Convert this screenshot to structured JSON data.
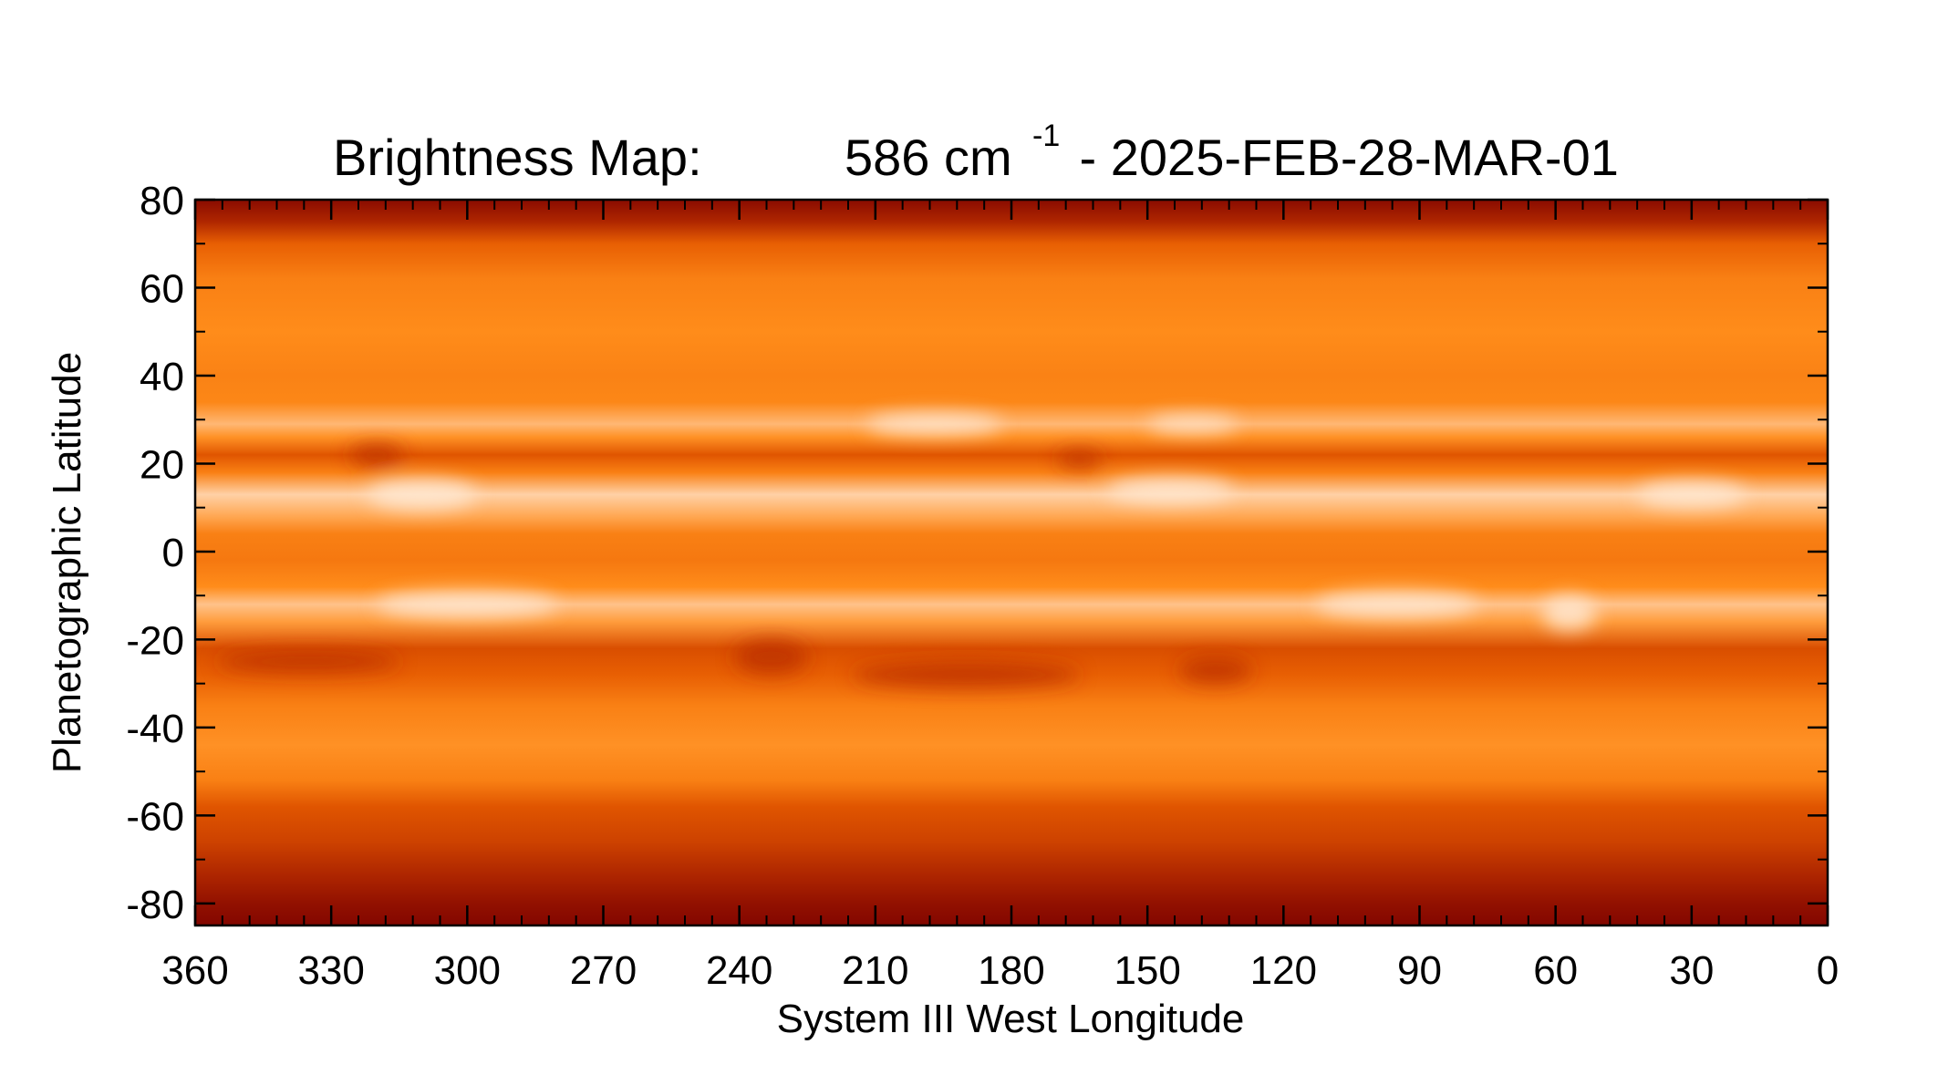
{
  "chart_data": {
    "type": "heatmap",
    "title": "Brightness Map:",
    "wavenumber": "586 cm",
    "wavenumber_exp": "-1",
    "date": " - 2025-FEB-28-MAR-01",
    "xlabel": "System III West Longitude",
    "ylabel": "Planetographic Latitude",
    "xlim": [
      360,
      0
    ],
    "ylim": [
      -85,
      80
    ],
    "x_ticks": [
      360,
      330,
      300,
      270,
      240,
      210,
      180,
      150,
      120,
      90,
      60,
      30,
      0
    ],
    "x_tick_labels": [
      "360",
      "330",
      "300",
      "270",
      "240",
      "210",
      "180",
      "150",
      "120",
      "90",
      "60",
      "30",
      "0"
    ],
    "y_ticks": [
      80,
      60,
      40,
      20,
      0,
      -20,
      -40,
      -60,
      -80
    ],
    "y_tick_labels": [
      "80",
      "60",
      "40",
      "20",
      "0",
      "-20",
      "-40",
      "-60",
      "-80"
    ],
    "colormap": [
      "#7a0000",
      "#b52a00",
      "#e55a00",
      "#ff8c1a",
      "#ffc28a",
      "#fff3e6"
    ],
    "latitude_profile": [
      {
        "lat": 80,
        "level": 0.05
      },
      {
        "lat": 75,
        "level": 0.18
      },
      {
        "lat": 70,
        "level": 0.42
      },
      {
        "lat": 62,
        "level": 0.55
      },
      {
        "lat": 50,
        "level": 0.6
      },
      {
        "lat": 40,
        "level": 0.56
      },
      {
        "lat": 34,
        "level": 0.58
      },
      {
        "lat": 29,
        "level": 0.76
      },
      {
        "lat": 26,
        "level": 0.62
      },
      {
        "lat": 22,
        "level": 0.38
      },
      {
        "lat": 18,
        "level": 0.55
      },
      {
        "lat": 13,
        "level": 0.86
      },
      {
        "lat": 8,
        "level": 0.7
      },
      {
        "lat": 4,
        "level": 0.55
      },
      {
        "lat": -2,
        "level": 0.52
      },
      {
        "lat": -8,
        "level": 0.6
      },
      {
        "lat": -12,
        "level": 0.8
      },
      {
        "lat": -16,
        "level": 0.66
      },
      {
        "lat": -22,
        "level": 0.35
      },
      {
        "lat": -28,
        "level": 0.42
      },
      {
        "lat": -35,
        "level": 0.55
      },
      {
        "lat": -44,
        "level": 0.62
      },
      {
        "lat": -52,
        "level": 0.55
      },
      {
        "lat": -58,
        "level": 0.38
      },
      {
        "lat": -66,
        "level": 0.3
      },
      {
        "lat": -74,
        "level": 0.17
      },
      {
        "lat": -80,
        "level": 0.08
      },
      {
        "lat": -85,
        "level": 0.03
      }
    ],
    "features": [
      {
        "lon": 145,
        "lat": 14,
        "r_lon": 14,
        "r_lat": 3,
        "kind": "bright"
      },
      {
        "lon": 30,
        "lat": 13,
        "r_lon": 12,
        "r_lat": 3,
        "kind": "bright"
      },
      {
        "lon": 310,
        "lat": 13,
        "r_lon": 12,
        "r_lat": 3.5,
        "kind": "bright"
      },
      {
        "lon": 197,
        "lat": 29,
        "r_lon": 15,
        "r_lat": 2.5,
        "kind": "bright"
      },
      {
        "lon": 140,
        "lat": 29,
        "r_lon": 10,
        "r_lat": 2,
        "kind": "bright"
      },
      {
        "lon": 300,
        "lat": -12,
        "r_lon": 20,
        "r_lat": 3,
        "kind": "bright"
      },
      {
        "lon": 95,
        "lat": -12,
        "r_lon": 18,
        "r_lat": 3,
        "kind": "bright"
      },
      {
        "lon": 57,
        "lat": -14,
        "r_lon": 6,
        "r_lat": 4,
        "kind": "bright"
      },
      {
        "lon": 233,
        "lat": -24,
        "r_lon": 8,
        "r_lat": 4,
        "kind": "dark"
      },
      {
        "lon": 320,
        "lat": 22,
        "r_lon": 6,
        "r_lat": 2.5,
        "kind": "dark"
      },
      {
        "lon": 165,
        "lat": 21,
        "r_lon": 5,
        "r_lat": 2,
        "kind": "dark"
      },
      {
        "lon": 190,
        "lat": -28,
        "r_lon": 25,
        "r_lat": 3,
        "kind": "dark"
      },
      {
        "lon": 135,
        "lat": -27,
        "r_lon": 8,
        "r_lat": 3,
        "kind": "dark"
      },
      {
        "lon": 335,
        "lat": -25,
        "r_lon": 20,
        "r_lat": 2.5,
        "kind": "dark"
      }
    ],
    "grid": false,
    "legend": "none"
  }
}
